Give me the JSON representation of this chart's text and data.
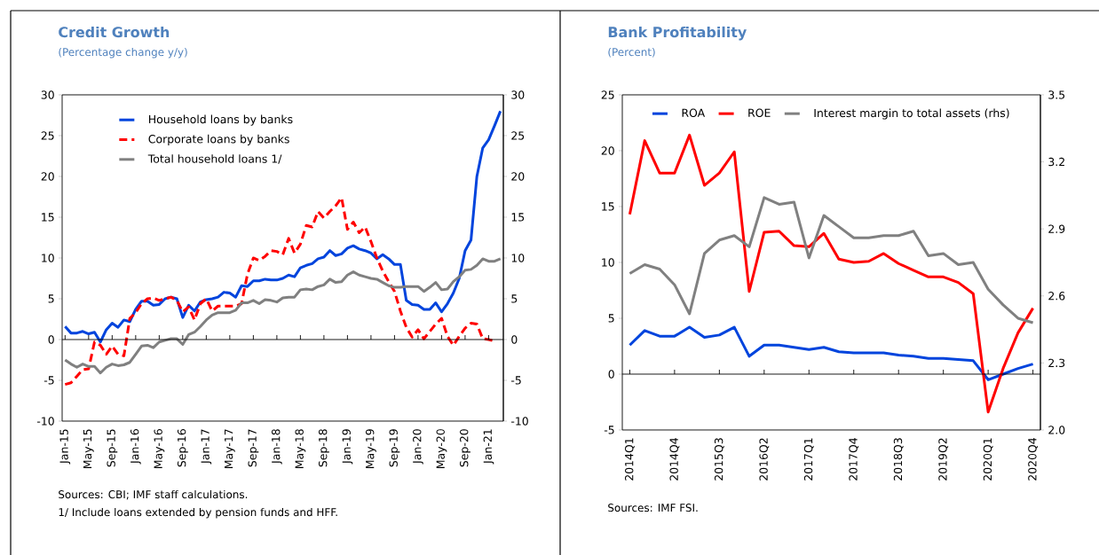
{
  "chart_data": [
    {
      "type": "line",
      "title": "Credit Growth",
      "subtitle": "(Percentage change y/y)",
      "categories": [
        "Jan-15",
        null,
        null,
        null,
        "May-15",
        null,
        null,
        null,
        "Sep-15",
        null,
        null,
        null,
        "Jan-16",
        null,
        null,
        null,
        "May-16",
        null,
        null,
        null,
        "Sep-16",
        null,
        null,
        null,
        "Jan-17",
        null,
        null,
        null,
        "May-17",
        null,
        null,
        null,
        "Sep-17",
        null,
        null,
        null,
        "Jan-18",
        null,
        null,
        null,
        "May-18",
        null,
        null,
        null,
        "Sep-18",
        null,
        null,
        null,
        "Jan-19",
        null,
        null,
        null,
        "May-19",
        null,
        null,
        null,
        "Sep-19",
        null,
        null,
        null,
        "Jan-20",
        null,
        null,
        null,
        "May-20",
        null,
        null,
        null,
        "Sep-20",
        null,
        null,
        null,
        "Jan-21",
        null,
        null
      ],
      "series": [
        {
          "name": "Household loans by banks",
          "color": "#0044dd",
          "line_style": "solid",
          "values": [
            1.6,
            0.8,
            0.8,
            1.0,
            0.7,
            0.9,
            -0.3,
            1.2,
            2.0,
            1.5,
            2.4,
            2.2,
            3.7,
            4.7,
            4.7,
            4.2,
            4.3,
            5.0,
            5.2,
            5.0,
            2.7,
            4.2,
            3.5,
            4.6,
            4.9,
            5.0,
            5.2,
            5.8,
            5.7,
            5.2,
            6.6,
            6.5,
            7.2,
            7.2,
            7.4,
            7.3,
            7.3,
            7.5,
            7.9,
            7.7,
            8.8,
            9.1,
            9.3,
            9.9,
            10.1,
            10.9,
            10.3,
            10.5,
            11.2,
            11.5,
            11.1,
            10.9,
            10.6,
            9.9,
            10.4,
            9.9,
            9.2,
            9.2,
            4.8,
            4.3,
            4.2,
            3.7,
            3.7,
            4.5,
            3.4,
            4.4,
            5.7,
            7.5,
            10.9,
            12.2,
            20.0,
            23.5,
            24.5,
            26.2,
            28.0
          ]
        },
        {
          "name": "Corporate loans by banks",
          "color": "#ff0000",
          "line_style": "dashed",
          "values": [
            -5.5,
            -5.3,
            -4.5,
            -3.7,
            -3.6,
            -0.3,
            -0.7,
            -1.8,
            -0.8,
            -1.8,
            -2.0,
            2.6,
            3.3,
            4.4,
            5.0,
            5.1,
            4.8,
            5.0,
            5.2,
            4.8,
            3.4,
            4.0,
            2.4,
            4.4,
            5.0,
            3.5,
            4.1,
            4.1,
            4.1,
            4.1,
            4.4,
            8.0,
            10.0,
            9.7,
            10.2,
            10.9,
            10.8,
            10.4,
            12.4,
            10.6,
            11.7,
            14.0,
            13.8,
            15.7,
            14.9,
            15.7,
            16.4,
            17.4,
            13.5,
            14.4,
            13.1,
            13.8,
            12.0,
            10.0,
            8.4,
            7.1,
            5.9,
            3.5,
            1.5,
            0.3,
            1.2,
            0.1,
            1.0,
            1.9,
            2.6,
            0.4,
            -0.7,
            0.4,
            1.4,
            2.0,
            1.9,
            0.1,
            0.0,
            -0.2,
            null
          ]
        },
        {
          "name": "Total household loans 1/",
          "color": "#808080",
          "line_style": "solid",
          "values": [
            -2.5,
            -3.0,
            -3.4,
            -3.0,
            -3.3,
            -3.3,
            -4.1,
            -3.4,
            -3.0,
            -3.2,
            -3.1,
            -2.8,
            -1.8,
            -0.8,
            -0.7,
            -1.0,
            -0.3,
            -0.1,
            0.1,
            0.1,
            -0.6,
            0.6,
            0.9,
            1.6,
            2.4,
            3.0,
            3.3,
            3.3,
            3.3,
            3.6,
            4.5,
            4.5,
            4.8,
            4.4,
            4.9,
            4.8,
            4.6,
            5.1,
            5.2,
            5.2,
            6.1,
            6.2,
            6.1,
            6.5,
            6.7,
            7.4,
            7.0,
            7.1,
            7.9,
            8.3,
            7.9,
            7.7,
            7.5,
            7.4,
            7.0,
            6.6,
            6.4,
            6.4,
            6.5,
            6.5,
            6.5,
            5.9,
            6.4,
            7.0,
            6.1,
            6.2,
            7.1,
            7.7,
            8.5,
            8.6,
            9.1,
            9.9,
            9.6,
            9.6,
            9.9
          ]
        }
      ],
      "ylim": [
        -10,
        30
      ],
      "yticks": [
        -10,
        -5,
        0,
        5,
        10,
        15,
        20,
        25,
        30
      ],
      "y2lim": [
        -10,
        30
      ],
      "y2ticks": [
        -10,
        -5,
        0,
        5,
        10,
        15,
        20,
        25,
        30
      ],
      "legend": "top left",
      "annotations": [
        "Sources: CBI; IMF staff calculations.",
        "1/  Include loans extended by pension funds and HFF."
      ]
    },
    {
      "type": "line",
      "title": "Bank Profitability",
      "subtitle": "(Percent)",
      "categories": [
        "2014Q1",
        null,
        null,
        "2014Q4",
        null,
        null,
        "2015Q3",
        null,
        null,
        "2016Q2",
        null,
        null,
        "2017Q1",
        null,
        null,
        "2017Q4",
        null,
        null,
        "2018Q3",
        null,
        null,
        "2019Q2",
        null,
        null,
        "2020Q1",
        null,
        null,
        "2020Q4"
      ],
      "series": [
        {
          "name": "ROA",
          "color": "#0044dd",
          "values": [
            2.6,
            3.9,
            3.4,
            3.4,
            4.2,
            3.3,
            3.5,
            4.2,
            1.6,
            2.6,
            2.6,
            2.4,
            2.2,
            2.4,
            2.0,
            1.9,
            1.9,
            1.9,
            1.7,
            1.6,
            1.4,
            1.4,
            1.3,
            1.2,
            -0.5,
            0.0,
            0.5,
            0.9
          ]
        },
        {
          "name": "ROE",
          "color": "#ff0000",
          "values": [
            14.3,
            20.9,
            18.0,
            18.0,
            21.4,
            16.9,
            18.0,
            19.9,
            7.4,
            12.7,
            12.8,
            11.5,
            11.4,
            12.6,
            10.3,
            10.0,
            10.1,
            10.8,
            9.9,
            9.3,
            8.7,
            8.7,
            8.2,
            7.2,
            -3.4,
            0.5,
            3.7,
            5.9
          ]
        },
        {
          "name": "Interest margin to total assets (rhs)",
          "color": "#808080",
          "axis": "y2",
          "values": [
            2.7,
            2.74,
            2.72,
            2.65,
            2.52,
            2.79,
            2.85,
            2.87,
            2.82,
            3.04,
            3.01,
            3.02,
            2.77,
            2.96,
            2.91,
            2.86,
            2.86,
            2.87,
            2.87,
            2.89,
            2.78,
            2.79,
            2.74,
            2.75,
            2.63,
            2.56,
            2.5,
            2.48
          ]
        }
      ],
      "ylim": [
        -5,
        25
      ],
      "yticks": [
        -5,
        0,
        5,
        10,
        15,
        20,
        25
      ],
      "y2lim": [
        2.0,
        3.5
      ],
      "y2ticks": [
        {
          "value": 2.0,
          "label": "2.0"
        },
        2.3,
        2.6,
        2.9,
        3.2,
        3.5
      ],
      "legend": "top",
      "annotations": [
        "Sources: IMF FSI."
      ]
    }
  ]
}
